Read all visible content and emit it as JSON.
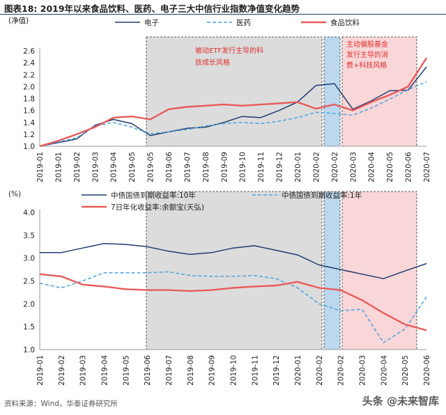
{
  "figure": {
    "title": "图表18:   2019年以来食品饮料、医药、电子三大中信行业指数净值变化趋势",
    "source": "资料来源：Wind，华泰证券研究所",
    "watermark": "头条 @未来智库"
  },
  "colors": {
    "electronics": "#1f3b6f",
    "medicine": "#4aa3df",
    "food": "#e85a5a",
    "shade_gray": "#dcdcdc",
    "shade_blue": "#bcd7ee",
    "shade_pink": "#f9d6d8"
  },
  "annotations": {
    "etf": [
      "被动ETF发行主导的科",
      "技成长风格"
    ],
    "active": [
      "主动偏股基金",
      "发行主导的消",
      "费+科技风格"
    ]
  },
  "chart_data": [
    {
      "type": "line",
      "ylabel": "(净值)",
      "ylim": [
        1.0,
        2.6
      ],
      "yticks": [
        1.0,
        1.2,
        1.4,
        1.6,
        1.8,
        2.0,
        2.2,
        2.4,
        2.6
      ],
      "categories": [
        "2019-01",
        "2019-01",
        "2019-02",
        "2019-03",
        "2019-04",
        "2019-05",
        "2019-05",
        "2019-06",
        "2019-07",
        "2019-08",
        "2019-09",
        "2019-10",
        "2019-11",
        "2019-12",
        "2020-01",
        "2020-02",
        "2020-02",
        "2020-03",
        "2020-04",
        "2020-05",
        "2020-06",
        "2020-07"
      ],
      "legend": [
        "电子",
        "医药",
        "食品饮料"
      ],
      "series": [
        {
          "name": "电子",
          "color_key": "electronics",
          "values": [
            1.0,
            1.06,
            1.12,
            1.35,
            1.45,
            1.38,
            1.18,
            1.24,
            1.3,
            1.32,
            1.4,
            1.5,
            1.48,
            1.6,
            1.74,
            2.02,
            2.05,
            1.62,
            1.76,
            1.93,
            1.94,
            2.33
          ]
        },
        {
          "name": "医药",
          "color_key": "medicine",
          "values": [
            1.0,
            1.07,
            1.14,
            1.34,
            1.4,
            1.32,
            1.21,
            1.24,
            1.28,
            1.34,
            1.38,
            1.4,
            1.38,
            1.42,
            1.48,
            1.57,
            1.55,
            1.52,
            1.64,
            1.79,
            1.95,
            2.08
          ]
        },
        {
          "name": "食品饮料",
          "color_key": "food",
          "values": [
            1.0,
            1.09,
            1.2,
            1.32,
            1.48,
            1.5,
            1.45,
            1.62,
            1.66,
            1.68,
            1.7,
            1.68,
            1.7,
            1.72,
            1.74,
            1.63,
            1.7,
            1.6,
            1.74,
            1.86,
            2.0,
            2.48
          ]
        }
      ],
      "shaded_regions": [
        {
          "from": "2019-05",
          "to": "2020-02",
          "style": "gray"
        },
        {
          "from": "2020-02",
          "to": "2020-02",
          "style": "blue"
        },
        {
          "from": "2020-02",
          "to": "2020-07",
          "style": "pink"
        }
      ]
    },
    {
      "type": "line",
      "ylabel": "(%)",
      "ylim": [
        1.0,
        4.0
      ],
      "yticks": [
        1.0,
        1.5,
        2.0,
        2.5,
        3.0,
        3.5,
        4.0
      ],
      "categories": [
        "2019-01",
        "2019-02",
        "2019-03",
        "2019-04",
        "2019-05",
        "2019-06",
        "2019-07",
        "2019-08",
        "2019-09",
        "2019-10",
        "2019-11",
        "2019-12",
        "2020-01",
        "2020-02",
        "2020-02",
        "2020-03",
        "2020-04",
        "2020-05",
        "2020-06"
      ],
      "legend": [
        "中债国债到期收益率:10年",
        "中债国债到期收益率:1年",
        "7日年化收益率:余额宝(天弘)"
      ],
      "series": [
        {
          "name": "中债国债到期收益率:10年",
          "color_key": "electronics",
          "values": [
            3.12,
            3.12,
            3.22,
            3.32,
            3.3,
            3.25,
            3.15,
            3.08,
            3.12,
            3.22,
            3.27,
            3.17,
            3.07,
            2.85,
            2.75,
            2.65,
            2.55,
            2.72,
            2.88
          ]
        },
        {
          "name": "中债国债到期收益率:1年",
          "color_key": "medicine",
          "values": [
            2.45,
            2.35,
            2.5,
            2.68,
            2.68,
            2.68,
            2.7,
            2.62,
            2.6,
            2.6,
            2.62,
            2.55,
            2.35,
            2.0,
            1.85,
            1.88,
            1.15,
            1.45,
            2.15
          ]
        },
        {
          "name": "7日年化收益率:余额宝(天弘)",
          "color_key": "food",
          "values": [
            2.65,
            2.6,
            2.42,
            2.38,
            2.32,
            2.3,
            2.3,
            2.28,
            2.3,
            2.35,
            2.38,
            2.4,
            2.48,
            2.35,
            2.3,
            2.08,
            1.8,
            1.55,
            1.42
          ]
        }
      ],
      "shaded_regions": [
        {
          "from": "2019-05",
          "to": "2020-02",
          "style": "gray"
        },
        {
          "from": "2020-02",
          "to": "2020-02",
          "style": "blue"
        },
        {
          "from": "2020-02",
          "to": "2020-06",
          "style": "pink"
        }
      ]
    }
  ]
}
